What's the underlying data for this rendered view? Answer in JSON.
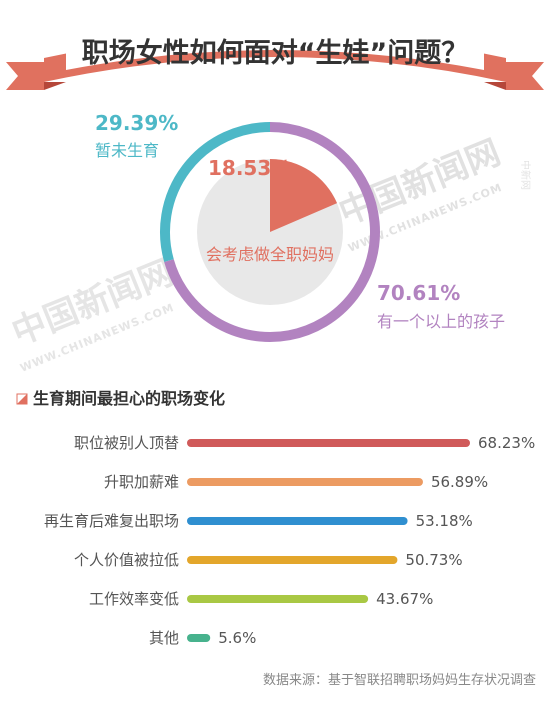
{
  "header": {
    "title": "职场女性如何面对“生娃”问题？"
  },
  "colors": {
    "ribbon": "#e0715f",
    "ribbon_dark": "#b5473a",
    "title_text": "#333333",
    "teal": "#4db8c7",
    "purple": "#b283c0",
    "salmon": "#e07060",
    "pie_bg": "#e8e8e8",
    "label_text": "#555555",
    "source_text": "#888888",
    "watermark": "#d9d9d9"
  },
  "donut": {
    "segments": [
      {
        "percent_label": "29.39%",
        "text": "暂未生育",
        "value": 29.39,
        "color": "#4db8c7"
      },
      {
        "percent_label": "70.61%",
        "text": "有一个以上的孩子",
        "value": 70.61,
        "color": "#b283c0"
      }
    ]
  },
  "inner_pie": {
    "percent_label": "18.53%",
    "text": "会考虑做全职妈妈",
    "value": 18.53,
    "color": "#e07060"
  },
  "watermarks": {
    "main_cn": "中国新闻网",
    "main_en": "WWW.CHINANEWS.COM",
    "small_cn": "中新网"
  },
  "section": {
    "title": "生育期间最担心的职场变化",
    "marker_color": "#e07060"
  },
  "chart_data": {
    "type": "bar",
    "title": "生育期间最担心的职场变化",
    "orientation": "horizontal",
    "categories": [
      "职位被别人顶替",
      "升职加薪难",
      "再生育后难复出职场",
      "个人价值被拉低",
      "工作效率变低",
      "其他"
    ],
    "values": [
      68.23,
      56.89,
      53.18,
      50.73,
      43.67,
      5.6
    ],
    "value_labels": [
      "68.23%",
      "56.89%",
      "53.18%",
      "50.73%",
      "43.67%",
      "5.6%"
    ],
    "colors": [
      "#d05a5a",
      "#ec9b62",
      "#2f8fd0",
      "#e3a62b",
      "#a9c844",
      "#47b28d"
    ],
    "unit": "%"
  },
  "source": "数据来源：基于智联招聘职场妈妈生存状况调查"
}
